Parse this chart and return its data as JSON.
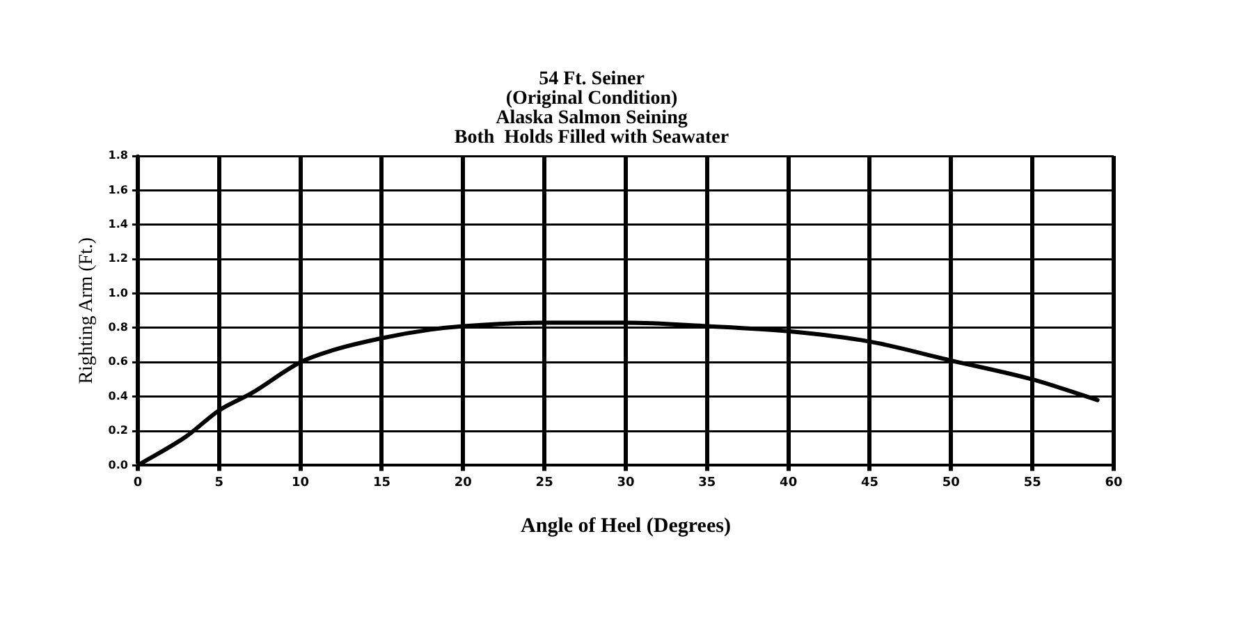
{
  "chart_data": {
    "type": "line",
    "title": [
      "54 Ft. Seiner",
      "(Original Condition)",
      "Alaska Salmon Seining",
      "Both  Holds Filled with Seawater"
    ],
    "xlabel": "Angle of Heel (Degrees)",
    "ylabel": "Righting Arm (Ft.)",
    "x": [
      0,
      3,
      5,
      7,
      10,
      12,
      15,
      18,
      20,
      25,
      30,
      35,
      40,
      45,
      50,
      55,
      59
    ],
    "values": [
      0,
      0.17,
      0.32,
      0.42,
      0.6,
      0.67,
      0.74,
      0.79,
      0.81,
      0.83,
      0.83,
      0.81,
      0.78,
      0.72,
      0.61,
      0.5,
      0.38
    ],
    "color": "#000000",
    "xlim": [
      0,
      60
    ],
    "xticks": [
      0,
      5,
      10,
      15,
      20,
      25,
      30,
      35,
      40,
      45,
      50,
      55,
      60
    ],
    "ylim": [
      0,
      1.8
    ],
    "yticks": [
      {
        "value": 0,
        "label": "0.0"
      },
      {
        "value": 0.2,
        "label": "0.2"
      },
      {
        "value": 0.4,
        "label": "0.4"
      },
      {
        "value": 0.6,
        "label": "0.6"
      },
      {
        "value": 0.8,
        "label": "0.8"
      },
      {
        "value": 1.0,
        "label": "1.0"
      },
      {
        "value": 1.2,
        "label": "1.2"
      },
      {
        "value": 1.4,
        "label": "1.4"
      },
      {
        "value": 1.6,
        "label": "1.6"
      },
      {
        "value": 1.8,
        "label": "1.8"
      }
    ],
    "grid": true,
    "marker": "none",
    "line_style": "solid"
  }
}
